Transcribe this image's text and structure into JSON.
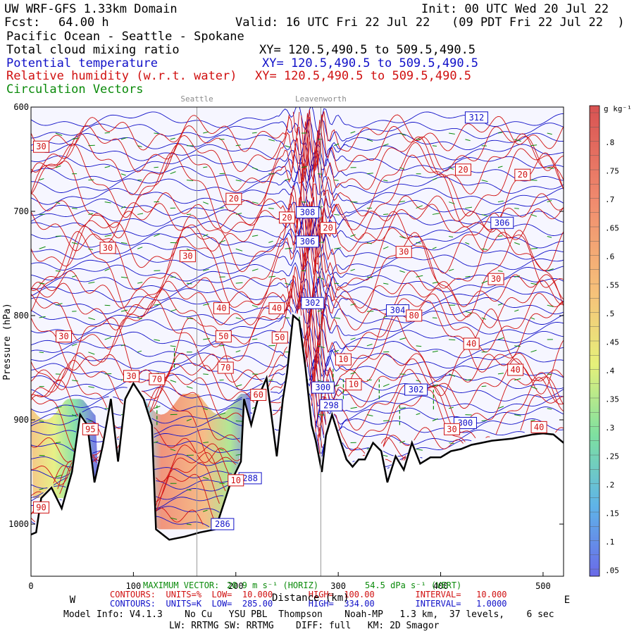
{
  "header": {
    "title": "UW WRF-GFS 1.33km Domain",
    "init": "Init: 00 UTC Wed 20 Jul 22",
    "fcst_label": "Fcst:",
    "fcst_value": "64.00 h",
    "valid": "Valid: 16 UTC Fri 22 Jul 22",
    "valid_local": "(09 PDT Fri 22 Jul 22  )",
    "region": "Pacific Ocean - Seattle - Spokane",
    "field1_name": "Total cloud mixing ratio",
    "field1_xy": "XY= 120.5,490.5 to 509.5,490.5",
    "field2_name": "Potential temperature",
    "field2_xy": "XY= 120.5,490.5 to 509.5,490.5",
    "field3_name": "Relative humidity (w.r.t. water)",
    "field3_xy": "XY= 120.5,490.5 to 509.5,490.5",
    "field4_name": "Circulation Vectors"
  },
  "chart_data": {
    "type": "cross-section",
    "title": "UW WRF-GFS 1.33km Domain",
    "xlabel": "Distance (km)",
    "ylabel": "Pressure (hPa)",
    "xlim": [
      0,
      520
    ],
    "ylim": [
      1050,
      600
    ],
    "x_ticks": [
      0,
      100,
      200,
      300,
      400,
      500
    ],
    "y_ticks": [
      600,
      700,
      800,
      900,
      1000
    ],
    "y_tick_labels": [
      "600",
      "700",
      "800",
      "900",
      "1000"
    ],
    "direction_left": "W",
    "direction_right": "E",
    "locations": [
      {
        "name": "Seattle",
        "x": 162
      },
      {
        "name": "Leavenworth",
        "x": 283
      }
    ],
    "colorbar": {
      "units": "g kg⁻¹",
      "levels": [
        ".05",
        ".1",
        ".15",
        ".2",
        ".25",
        ".3",
        ".35",
        ".4",
        ".45",
        ".5",
        ".55",
        ".6",
        ".65",
        ".7",
        ".75",
        ".8"
      ],
      "labels": [
        ".8",
        ".75",
        ".7",
        ".65",
        ".6",
        ".55",
        ".5",
        ".45",
        ".4",
        ".35",
        ".3",
        ".25",
        ".2",
        ".15",
        ".1",
        ".05"
      ]
    },
    "terrain": [
      [
        0,
        1010
      ],
      [
        5,
        1008
      ],
      [
        10,
        975
      ],
      [
        20,
        965
      ],
      [
        30,
        985
      ],
      [
        40,
        950
      ],
      [
        48,
        895
      ],
      [
        55,
        905
      ],
      [
        62,
        960
      ],
      [
        70,
        925
      ],
      [
        78,
        880
      ],
      [
        85,
        940
      ],
      [
        92,
        880
      ],
      [
        100,
        865
      ],
      [
        110,
        880
      ],
      [
        118,
        905
      ],
      [
        122,
        1005
      ],
      [
        135,
        1015
      ],
      [
        150,
        1012
      ],
      [
        165,
        1008
      ],
      [
        180,
        1005
      ],
      [
        195,
        960
      ],
      [
        205,
        940
      ],
      [
        208,
        880
      ],
      [
        215,
        905
      ],
      [
        222,
        878
      ],
      [
        230,
        860
      ],
      [
        236,
        905
      ],
      [
        240,
        935
      ],
      [
        246,
        880
      ],
      [
        250,
        855
      ],
      [
        256,
        800
      ],
      [
        262,
        805
      ],
      [
        268,
        850
      ],
      [
        274,
        905
      ],
      [
        278,
        920
      ],
      [
        284,
        950
      ],
      [
        288,
        915
      ],
      [
        294,
        895
      ],
      [
        302,
        920
      ],
      [
        308,
        938
      ],
      [
        314,
        945
      ],
      [
        320,
        938
      ],
      [
        326,
        938
      ],
      [
        334,
        922
      ],
      [
        342,
        930
      ],
      [
        348,
        960
      ],
      [
        356,
        935
      ],
      [
        364,
        948
      ],
      [
        372,
        922
      ],
      [
        380,
        942
      ],
      [
        390,
        936
      ],
      [
        400,
        936
      ],
      [
        410,
        930
      ],
      [
        420,
        928
      ],
      [
        430,
        924
      ],
      [
        440,
        922
      ],
      [
        450,
        920
      ],
      [
        460,
        919
      ],
      [
        470,
        918
      ],
      [
        480,
        916
      ],
      [
        490,
        914
      ],
      [
        500,
        913
      ],
      [
        510,
        914
      ],
      [
        520,
        922
      ]
    ],
    "cloud_regions": [
      {
        "x": [
          0,
          65
        ],
        "p": [
          880,
          975
        ],
        "max_gkg": ".6"
      },
      {
        "x": [
          112,
          215
        ],
        "p": [
          875,
          1005
        ],
        "max_gkg": ".8"
      }
    ],
    "theta_labels": [
      {
        "value": "312",
        "x": 435,
        "p": 610
      },
      {
        "value": "308",
        "x": 270,
        "p": 701
      },
      {
        "value": "306",
        "x": 460,
        "p": 711
      },
      {
        "value": "306",
        "x": 270,
        "p": 729
      },
      {
        "value": "302",
        "x": 275,
        "p": 788
      },
      {
        "value": "304",
        "x": 358,
        "p": 795
      },
      {
        "value": "300",
        "x": 285,
        "p": 869
      },
      {
        "value": "302",
        "x": 376,
        "p": 871
      },
      {
        "value": "298",
        "x": 293,
        "p": 886
      },
      {
        "value": "300",
        "x": 424,
        "p": 903
      },
      {
        "value": "288",
        "x": 214,
        "p": 956
      },
      {
        "value": "286",
        "x": 187,
        "p": 1000
      }
    ],
    "rh_labels": [
      {
        "value": "30",
        "x": 10,
        "p": 638
      },
      {
        "value": "20",
        "x": 422,
        "p": 660
      },
      {
        "value": "20",
        "x": 480,
        "p": 665
      },
      {
        "value": "20",
        "x": 198,
        "p": 688
      },
      {
        "value": "20",
        "x": 250,
        "p": 706
      },
      {
        "value": "20",
        "x": 290,
        "p": 716
      },
      {
        "value": "30",
        "x": 75,
        "p": 735
      },
      {
        "value": "30",
        "x": 153,
        "p": 743
      },
      {
        "value": "30",
        "x": 364,
        "p": 739
      },
      {
        "value": "30",
        "x": 454,
        "p": 765
      },
      {
        "value": "40",
        "x": 186,
        "p": 793
      },
      {
        "value": "40",
        "x": 240,
        "p": 793
      },
      {
        "value": "30",
        "x": 32,
        "p": 820
      },
      {
        "value": "50",
        "x": 188,
        "p": 820
      },
      {
        "value": "50",
        "x": 243,
        "p": 821
      },
      {
        "value": "80",
        "x": 374,
        "p": 800
      },
      {
        "value": "40",
        "x": 430,
        "p": 827
      },
      {
        "value": "40",
        "x": 473,
        "p": 852
      },
      {
        "value": "70",
        "x": 190,
        "p": 850
      },
      {
        "value": "10",
        "x": 305,
        "p": 842
      },
      {
        "value": "30",
        "x": 98,
        "p": 858
      },
      {
        "value": "70",
        "x": 123,
        "p": 861
      },
      {
        "value": "10",
        "x": 315,
        "p": 866
      },
      {
        "value": "60",
        "x": 222,
        "p": 876
      },
      {
        "value": "40",
        "x": 496,
        "p": 907
      },
      {
        "value": "30",
        "x": 411,
        "p": 909
      },
      {
        "value": "95",
        "x": 58,
        "p": 909
      },
      {
        "value": "10",
        "x": 200,
        "p": 958
      },
      {
        "value": "90",
        "x": 10,
        "p": 984
      }
    ]
  },
  "footer": {
    "max_vector": "MAXIMUM VECTOR:",
    "max_vector_value": "20.9 m s⁻¹ (HORIZ)",
    "max_vector_vert": "54.5 dPa s⁻¹ (VERT)",
    "contours_rh": "CONTOURS:  UNITS=%  LOW=  10.000       HIGH=  100.00        INTERVAL=   10.000",
    "contours_theta": "CONTOURS:  UNITS=K  LOW=  285.00       HIGH=  334.00        INTERVAL=   1.0000",
    "distance_label": "Distance (km)",
    "model_info": "Model Info: V4.1.3    No Cu   YSU PBL  Thompson    Noah-MP   1.3 km,  37 levels,    6 sec",
    "physics": "LW: RRTMG SW: RRTMG    DIFF: full   KM: 2D Smagor"
  },
  "colors": {
    "theta": "#1010c8",
    "rh": "#d01010",
    "vectors": "#0a8a0a",
    "terrain": "#000000",
    "plot_bg": "#f6f6ff"
  }
}
